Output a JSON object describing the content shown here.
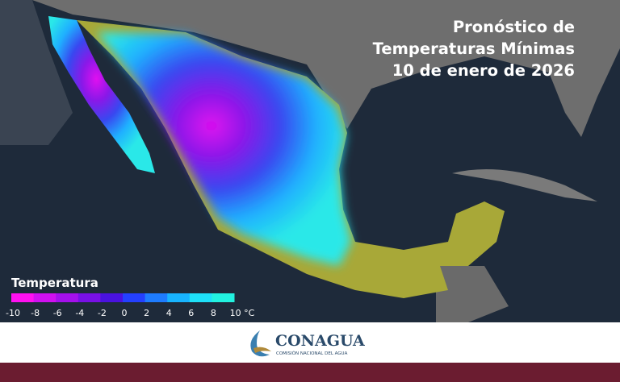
{
  "header": {
    "title_lines": [
      "Pronóstico de",
      "Temperaturas Mínimas",
      "10 de enero de 2026"
    ]
  },
  "legend": {
    "title": "Temperatura",
    "labels": [
      "-10",
      "-8",
      "-6",
      "-4",
      "-2",
      "0",
      "2",
      "4",
      "6",
      "8",
      "10 °C"
    ],
    "colors": [
      "#ff10f0",
      "#d010f0",
      "#a410ec",
      "#7810e6",
      "#4a12e0",
      "#2440ff",
      "#1e7cff",
      "#18b4ff",
      "#1ee0f8",
      "#22f2e0"
    ]
  },
  "footer": {
    "logo_name": "CONAGUA",
    "logo_subtitle": "COMISIÓN NACIONAL DEL AGUA"
  }
}
